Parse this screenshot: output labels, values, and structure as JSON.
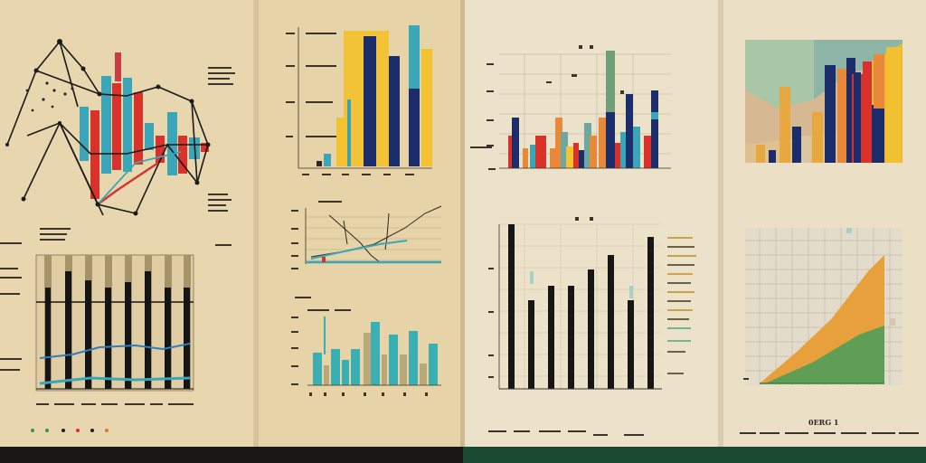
{
  "caption": "0ERG 1",
  "colors": {
    "paper_a": "#e8d6ae",
    "paper_b": "#e5d1a6",
    "paper_c": "#ece2cb",
    "paper_d": "#ebe0c8",
    "navy": "#1b2d6b",
    "teal": "#3aa6b8",
    "red": "#d8322a",
    "yellow": "#f2c230",
    "orange": "#e8893a",
    "green": "#5e9e55",
    "black": "#161616",
    "bottom_left": "#1a1814",
    "bottom_right": "#19492e"
  }
}
